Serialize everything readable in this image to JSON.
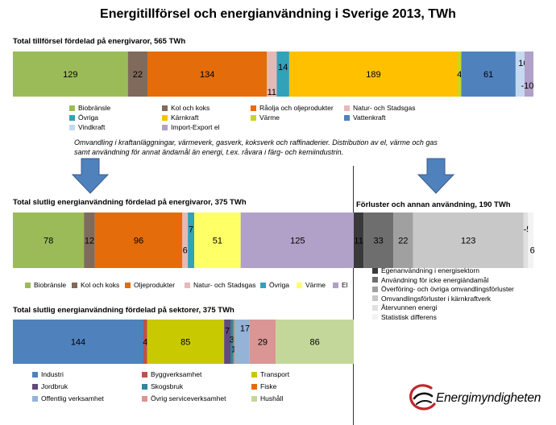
{
  "title": "Energitillförsel och energianvändning i Sverige 2013, TWh",
  "note": "Omvandling i kraftanläggningar, värmeverk, gasverk, koksverk och raffinaderier. Distribution av el, värme och gas samt användning för annat ändamål än energi, t.ex. råvara i färg- och kemiindustrin.",
  "logo": {
    "name": "Energimyndigheten",
    "color": "#c0272d"
  },
  "chart_data": [
    {
      "id": "supply",
      "type": "bar",
      "title": "Total tillförsel fördelad på energivaror, 565 TWh",
      "series": [
        {
          "name": "Biobränsle",
          "value": 129,
          "label": "129",
          "color": "#9bbb59"
        },
        {
          "name": "Kol och koks",
          "value": 22,
          "label": "22",
          "color": "#7f6a5b"
        },
        {
          "name": "Råolja och oljeprodukter",
          "value": 134,
          "label": "134",
          "color": "#e46c0a"
        },
        {
          "name": "Natur- och Stadsgas",
          "value": 11,
          "label": "11",
          "color": "#e6b9b8"
        },
        {
          "name": "Övriga",
          "value": 14,
          "label": "14",
          "color": "#31a2b8"
        },
        {
          "name": "Kärnkraft",
          "value": 189,
          "label": "189",
          "color": "#ffc000"
        },
        {
          "name": "Värme",
          "value": 4,
          "label": "4",
          "color": "#c9d61f"
        },
        {
          "name": "Vattenkraft",
          "value": 61,
          "label": "61",
          "color": "#4f81bd"
        },
        {
          "name": "Vindkraft",
          "value": 10,
          "label": "10",
          "color": "#c5d9f1"
        },
        {
          "name": "Import-Export el",
          "value": -10,
          "label": "-10",
          "color": "#b1a0c7"
        }
      ],
      "legend": [
        [
          "Biobränsle",
          "Kol och koks",
          "Råolja och oljeprodukter",
          "Natur- och Stadsgas"
        ],
        [
          "Övriga",
          "Kärnkraft",
          "Värme",
          "Vattenkraft"
        ],
        [
          "Vindkraft",
          "Import-Export el"
        ]
      ]
    },
    {
      "id": "final_use",
      "type": "bar",
      "title": "Total slutlig energianvändning fördelad på energivaror, 375 TWh",
      "series": [
        {
          "name": "Biobränsle",
          "value": 78,
          "label": "78",
          "color": "#9bbb59"
        },
        {
          "name": "Kol och koks",
          "value": 12,
          "label": "12",
          "color": "#7f6a5b"
        },
        {
          "name": "Oljeprodukter",
          "value": 96,
          "label": "96",
          "color": "#e46c0a"
        },
        {
          "name": "Natur- och Stadsgas",
          "value": 6,
          "label": "6",
          "color": "#e6b9b8"
        },
        {
          "name": "Övriga",
          "value": 7,
          "label": "7",
          "color": "#31a2b8"
        },
        {
          "name": "Värme",
          "value": 51,
          "label": "51",
          "color": "#ffff66"
        },
        {
          "name": "El",
          "value": 125,
          "label": "125",
          "color": "#b1a0c7"
        }
      ],
      "legend": [
        [
          "Biobränsle",
          "Kol och koks",
          "Oljeprodukter",
          "Natur- och Stadsgas",
          "Övriga",
          "Värme",
          "El"
        ]
      ]
    },
    {
      "id": "losses",
      "type": "bar",
      "title": "Förluster och annan användning, 190 TWh",
      "series": [
        {
          "name": "Egenanvändning i energisektorn",
          "value": 11,
          "label": "11",
          "color": "#3a3a3a"
        },
        {
          "name": "Användning för icke energiändamål",
          "value": 33,
          "label": "33",
          "color": "#6e6e6e"
        },
        {
          "name": "Överföring- och övriga omvandlingsförluster",
          "value": 22,
          "label": "22",
          "color": "#a0a0a0"
        },
        {
          "name": "Omvandlingsförluster i kärnkraftverk",
          "value": 123,
          "label": "123",
          "color": "#c8c8c8"
        },
        {
          "name": "Återvunnen energi",
          "value": -5,
          "label": "-5",
          "color": "#e0e0e0"
        },
        {
          "name": "Statistisk differens",
          "value": 6,
          "label": "6",
          "color": "#f3f3f3"
        }
      ],
      "legend": [
        [
          "Egenanvändning i energisektorn"
        ],
        [
          "Användning för icke energiändamål"
        ],
        [
          "Överföring- och övriga omvandlingsförluster"
        ],
        [
          "Omvandlingsförluster i kärnkraftverk"
        ],
        [
          "Återvunnen energi"
        ],
        [
          "Statistisk differens"
        ]
      ]
    },
    {
      "id": "sectors",
      "type": "bar",
      "title": "Total slutlig energianvändning fördelad på sektorer, 375 TWh",
      "series": [
        {
          "name": "Industri",
          "value": 144,
          "label": "144",
          "color": "#4f81bd"
        },
        {
          "name": "Byggverksamhet",
          "value": 4,
          "label": "4",
          "color": "#c0504d"
        },
        {
          "name": "Transport",
          "value": 85,
          "label": "85",
          "color": "#c9c900"
        },
        {
          "name": "Jordbruk",
          "value": 7,
          "label": "7",
          "color": "#604a7b"
        },
        {
          "name": "Skogsbruk",
          "value": 3,
          "label": "3",
          "color": "#31859c"
        },
        {
          "name": "Fiske",
          "value": 1,
          "label": "1",
          "color": "#e46c0a"
        },
        {
          "name": "Offentlig verksamhet",
          "value": 17,
          "label": "17",
          "color": "#95b3d7"
        },
        {
          "name": "Övrig serviceverksamhet",
          "value": 29,
          "label": "29",
          "color": "#d99694"
        },
        {
          "name": "Hushåll",
          "value": 86,
          "label": "86",
          "color": "#c4d79b"
        }
      ],
      "legend": [
        [
          "Industri",
          "Byggverksamhet",
          "Transport"
        ],
        [
          "Jordbruk",
          "Skogsbruk",
          "Fiske"
        ],
        [
          "Offentlig verksamhet",
          "Övrig serviceverksamhet",
          "Hushåll"
        ]
      ]
    }
  ]
}
